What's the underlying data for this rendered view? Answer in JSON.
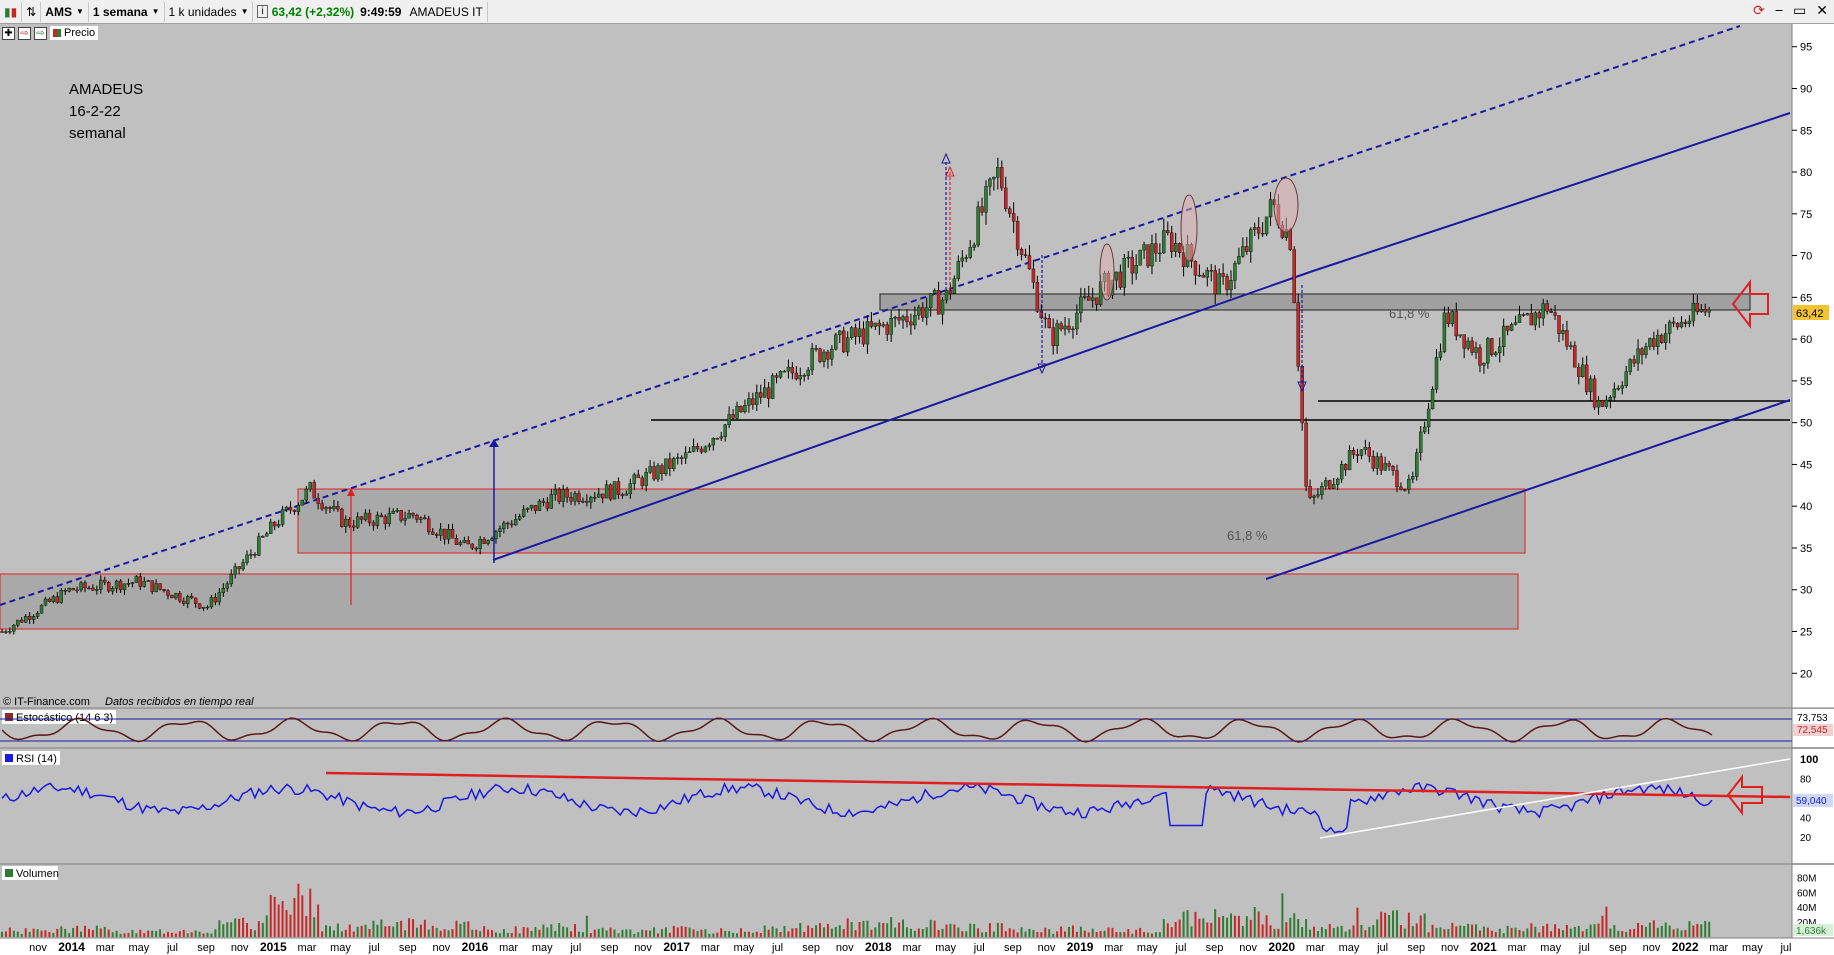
{
  "toolbar": {
    "symbol": "AMS",
    "period": "1 semana",
    "units": "1 k unidades",
    "quote": "63,42 (+2,32%)",
    "time": "9:49:59",
    "name": "AMADEUS IT"
  },
  "legend_price": "Precio",
  "annotation": {
    "line1": "AMADEUS",
    "line2": "16-2-22",
    "line3": "semanal"
  },
  "credits": {
    "source": "© IT-Finance.com",
    "note": "Datos recibidos en tiempo real"
  },
  "fib_labels": [
    "61,8 %",
    "61,8 %"
  ],
  "price_axis_ticks": [
    "95",
    "90",
    "85",
    "80",
    "75",
    "70",
    "65",
    "60",
    "55",
    "50",
    "45",
    "40",
    "35",
    "30",
    "25",
    "20"
  ],
  "current_price_label": "63,42",
  "indicators": {
    "stochastic": {
      "title": "Estocástico (14 6 3)",
      "value1": "73,753",
      "value2": "72,545"
    },
    "rsi": {
      "title": "RSI (14)",
      "value": "59,040",
      "ticks": [
        "100",
        "80",
        "60",
        "40",
        "20"
      ]
    },
    "volume": {
      "title": "Volumen",
      "ticks": [
        "80M",
        "60M",
        "40M",
        "20M"
      ],
      "value": "1,636k"
    }
  },
  "time_axis": [
    "nov",
    "2014",
    "mar",
    "may",
    "jul",
    "sep",
    "nov",
    "2015",
    "mar",
    "may",
    "jul",
    "sep",
    "nov",
    "2016",
    "mar",
    "may",
    "jul",
    "sep",
    "nov",
    "2017",
    "mar",
    "may",
    "jul",
    "sep",
    "nov",
    "2018",
    "mar",
    "may",
    "jul",
    "sep",
    "nov",
    "2019",
    "mar",
    "may",
    "jul",
    "sep",
    "nov",
    "2020",
    "mar",
    "may",
    "jul",
    "sep",
    "nov",
    "2021",
    "mar",
    "may",
    "jul",
    "sep",
    "nov",
    "2022",
    "mar",
    "may",
    "jul"
  ],
  "colors": {
    "up": "#2e7d32",
    "down": "#c62828",
    "channel": "#1a1aa0",
    "resistance": "#e02020",
    "rsi": "#1a1ae0"
  },
  "chart_data": {
    "type": "candlestick",
    "title": "AMADEUS IT",
    "timeframe": "weekly",
    "ylim": [
      18,
      97
    ],
    "x": [
      "2013-11",
      "2014-03",
      "2014-07",
      "2014-11",
      "2015-03",
      "2015-05",
      "2015-07",
      "2015-11",
      "2016-02",
      "2016-07",
      "2016-11",
      "2017-03",
      "2017-07",
      "2017-11",
      "2018-03",
      "2018-06",
      "2018-09",
      "2018-12",
      "2019-03",
      "2019-07",
      "2019-10",
      "2020-01",
      "2020-02",
      "2020-03",
      "2020-06",
      "2020-09",
      "2020-11",
      "2021-01",
      "2021-05",
      "2021-08",
      "2021-11",
      "2022-02"
    ],
    "close": [
      25,
      30,
      31,
      28,
      38,
      42,
      38,
      39,
      35,
      41,
      42,
      46,
      53,
      59,
      62,
      65,
      80,
      60,
      66,
      72,
      66,
      76,
      72,
      40,
      47,
      42,
      63,
      58,
      64,
      52,
      60,
      63.42
    ],
    "last_close": 63.42,
    "volume_millions": [
      10,
      12,
      8,
      10,
      20,
      60,
      15,
      20,
      18,
      12,
      15,
      10,
      12,
      10,
      12,
      15,
      22,
      18,
      15,
      10,
      12,
      10,
      30,
      32,
      20,
      15,
      28,
      15,
      12,
      15,
      15,
      20
    ]
  }
}
